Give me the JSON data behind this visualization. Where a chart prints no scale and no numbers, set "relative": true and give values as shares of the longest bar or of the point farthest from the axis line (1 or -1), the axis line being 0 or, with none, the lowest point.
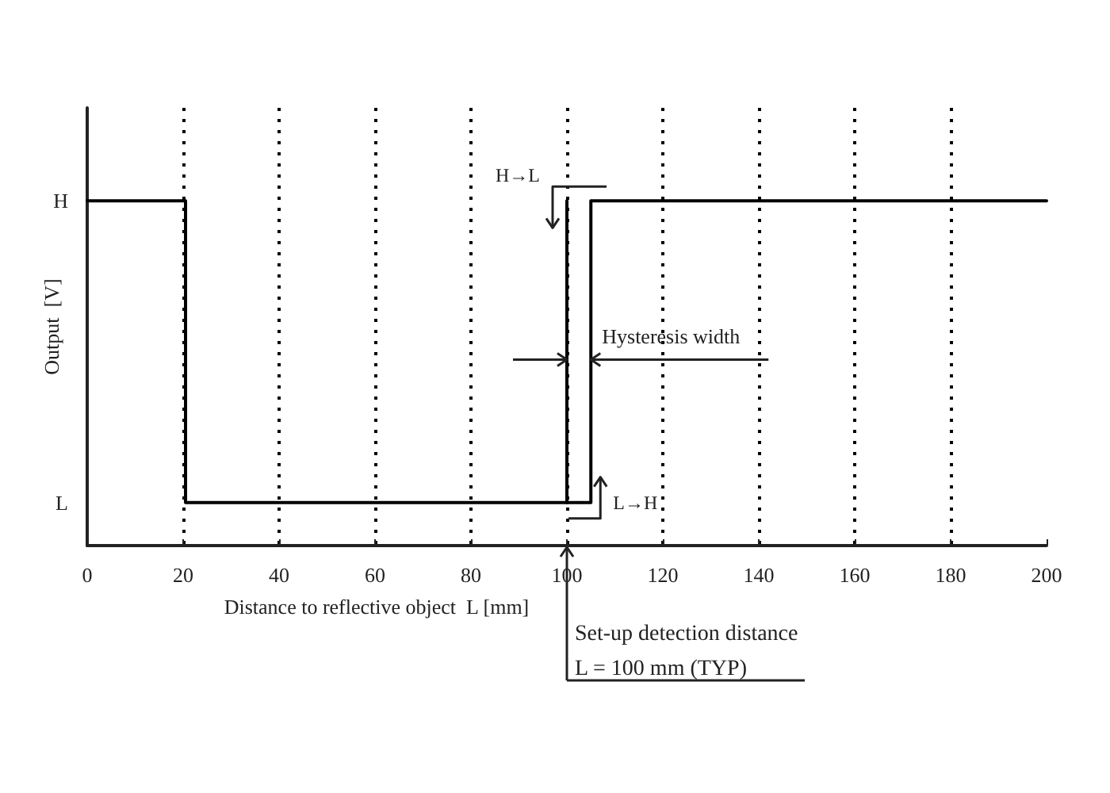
{
  "chart_data": {
    "type": "line",
    "xlabel": "Distance to reflective object  L [mm]",
    "ylabel": "Output  [V]",
    "relative": true,
    "series": [
      {
        "color": "#000000",
        "x": [
          0,
          20.5,
          20.5,
          105,
          105,
          200
        ],
        "values": [
          1,
          1,
          0.125,
          0.125,
          1,
          1
        ]
      },
      {
        "color": "#000000",
        "x": [
          100,
          100
        ],
        "values": [
          0.125,
          1
        ]
      }
    ],
    "xlim": [
      0,
      200
    ],
    "xticks": [
      0,
      20,
      40,
      60,
      80,
      100,
      120,
      140,
      160,
      180,
      200
    ],
    "grid": "x",
    "line_style": "solid",
    "annotations": [
      "H",
      "L",
      "H→L",
      "L→H",
      "Hysteresis width",
      "L = 100 mm (TYP)"
    ],
    "ref_lines": [
      {
        "axis": "x",
        "value": 100,
        "label": "Set-up detection distance"
      }
    ]
  }
}
